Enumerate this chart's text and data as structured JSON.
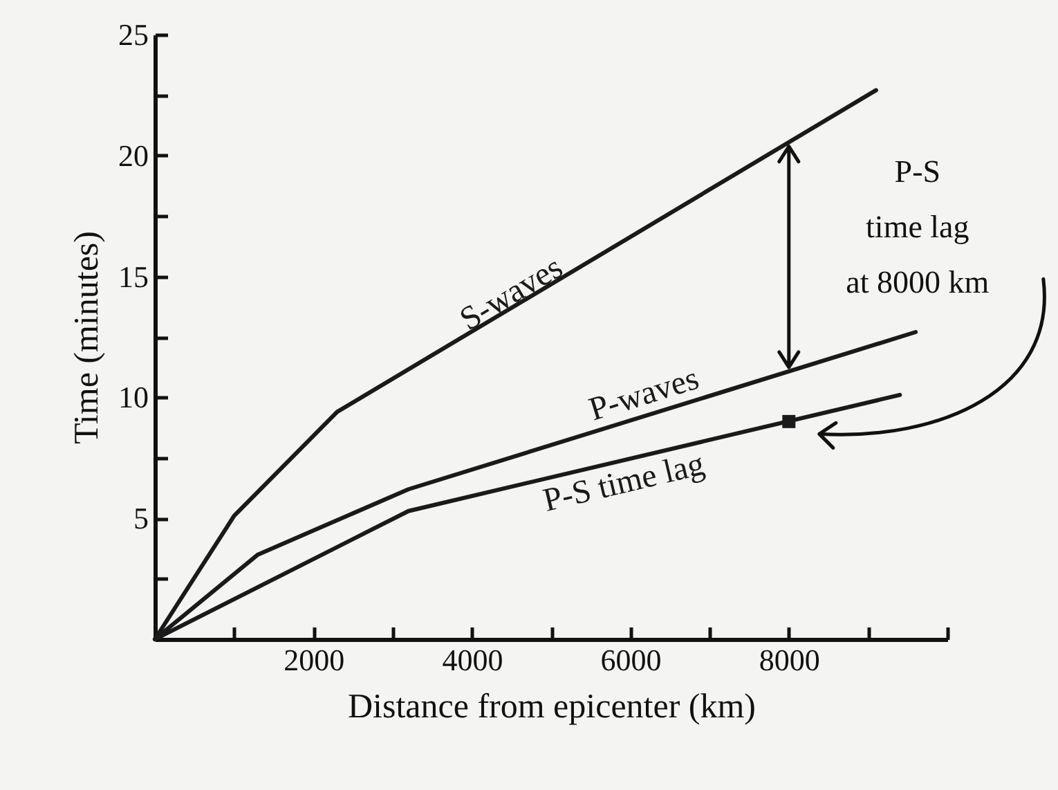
{
  "chart_data": {
    "type": "line",
    "xlabel": "Distance from epicenter (km)",
    "ylabel": "Time (minutes)",
    "xlim": [
      0,
      10000
    ],
    "ylim": [
      0,
      25
    ],
    "xticks": [
      {
        "value": 1000,
        "label": null
      },
      2000,
      {
        "value": 3000,
        "label": null
      },
      4000,
      {
        "value": 5000,
        "label": null
      },
      6000,
      {
        "value": 7000,
        "label": null
      },
      8000,
      {
        "value": 9000,
        "label": null
      },
      {
        "value": 10000,
        "label": null
      }
    ],
    "yticks": [
      {
        "value": 2.5,
        "label": null
      },
      5,
      {
        "value": 7.5,
        "label": null
      },
      10,
      {
        "value": 12.5,
        "label": null
      },
      15,
      {
        "value": 17.5,
        "label": null
      },
      20,
      {
        "value": 22.5,
        "label": null
      },
      25
    ],
    "series": [
      {
        "name": "S-waves",
        "color": "#1a1a1a",
        "x": [
          0,
          1000,
          2300,
          9100
        ],
        "values": [
          0,
          5.1,
          9.4,
          22.7
        ]
      },
      {
        "name": "P-waves",
        "color": "#1a1a1a",
        "x": [
          0,
          1300,
          3200,
          9600
        ],
        "values": [
          0,
          3.5,
          6.2,
          12.7
        ]
      },
      {
        "name": "P-S time lag",
        "color": "#1a1a1a",
        "x": [
          0,
          3200,
          9400
        ],
        "values": [
          0,
          5.3,
          10.1
        ]
      },
      {
        "type": "scatter",
        "marker": "square",
        "color": "#1a1a1a",
        "x": [
          8000
        ],
        "values": [
          9
        ]
      }
    ],
    "annotations": [
      "P-S\ntime lag\nat 8000 km"
    ]
  }
}
